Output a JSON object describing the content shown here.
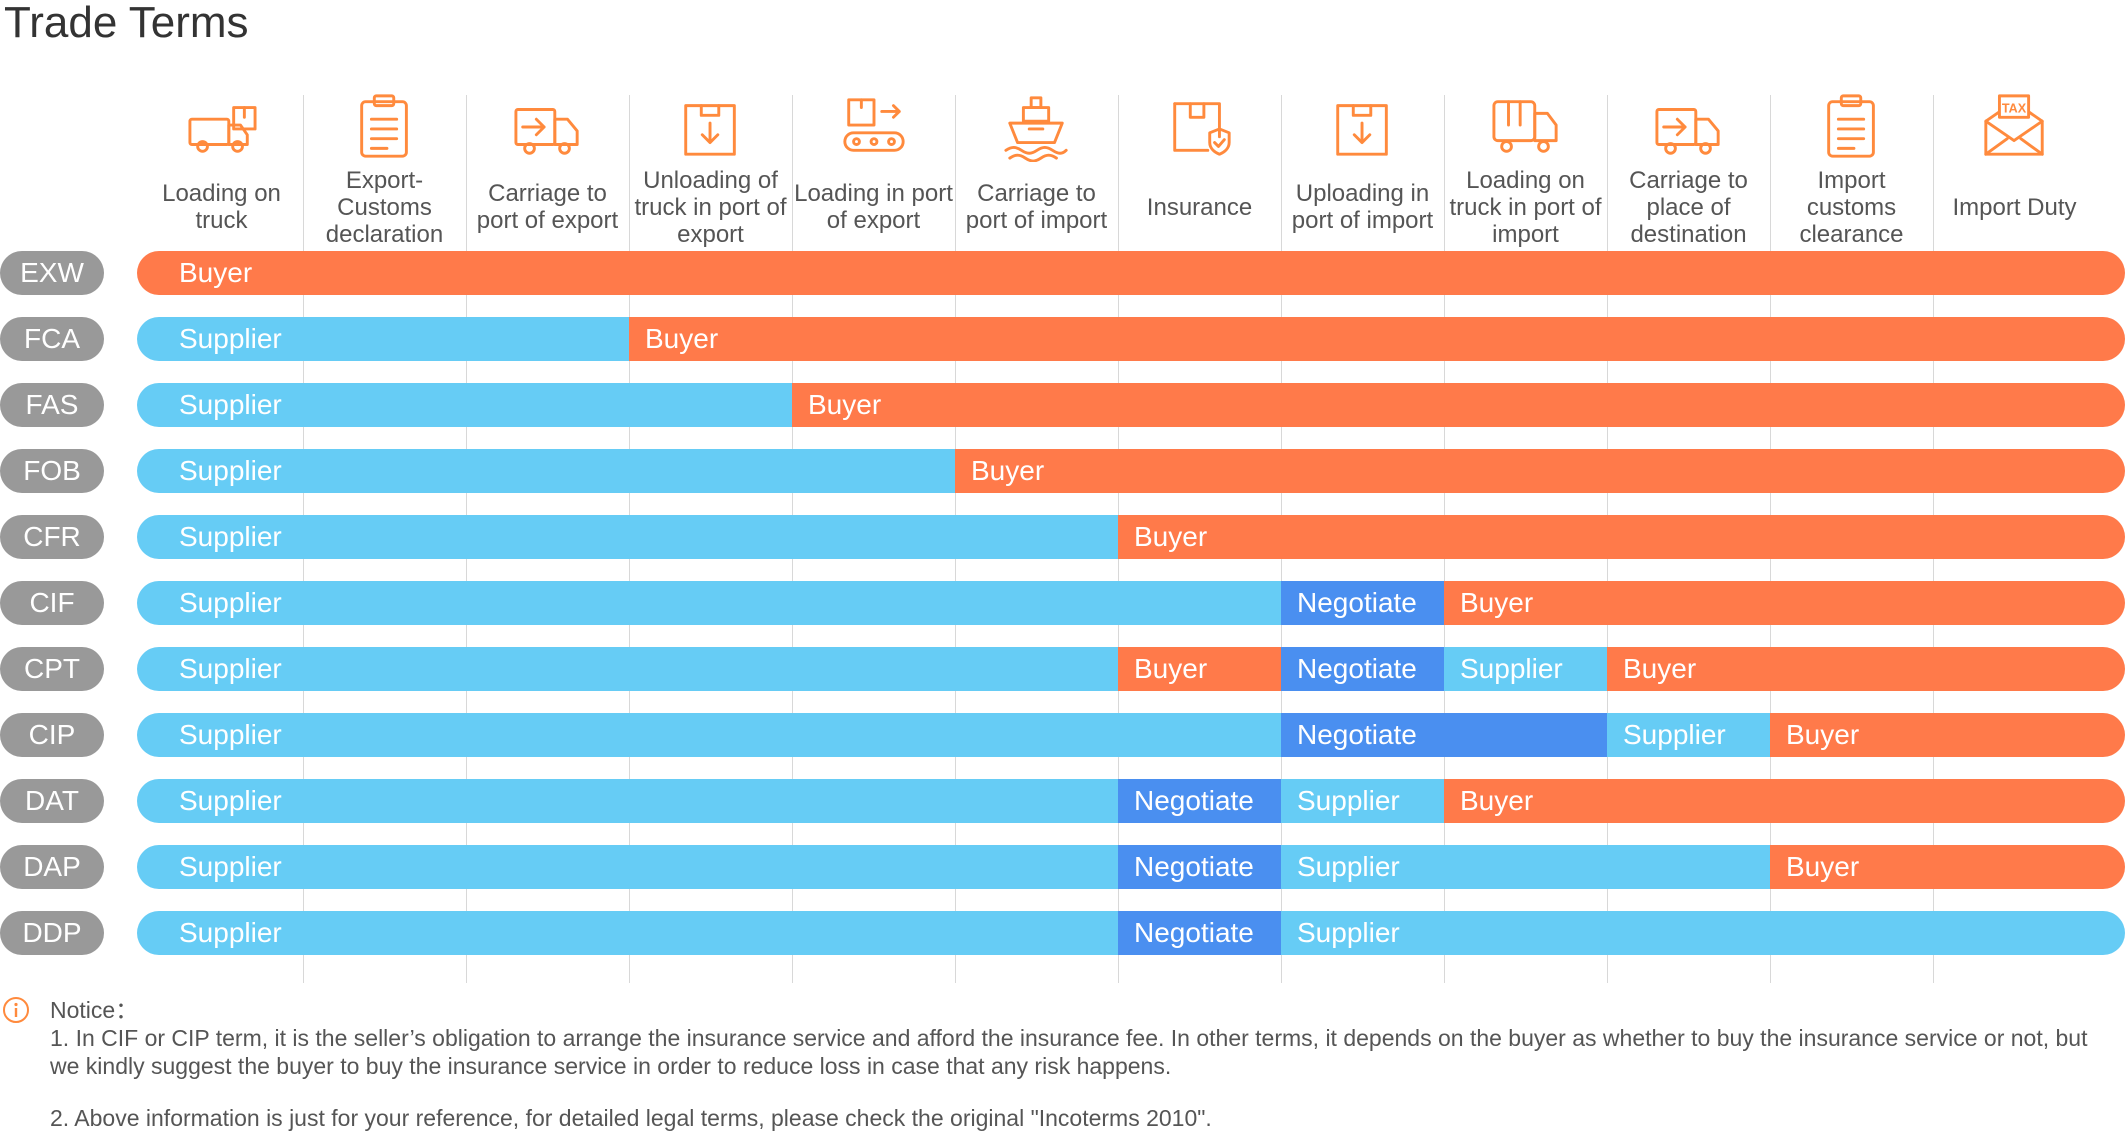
{
  "title": "Trade Terms",
  "columns": [
    {
      "label": "Loading on truck",
      "icon": "loading-truck-icon"
    },
    {
      "label": "Export-Customs declaration",
      "icon": "clipboard-icon"
    },
    {
      "label": "Carriage to port of export",
      "icon": "delivery-truck-icon"
    },
    {
      "label": "Unloading of truck in port of export",
      "icon": "unloading-box-icon"
    },
    {
      "label": "Loading in port of export",
      "icon": "conveyor-icon"
    },
    {
      "label": "Carriage to port of import",
      "icon": "ship-icon"
    },
    {
      "label": "Insurance",
      "icon": "insured-box-icon"
    },
    {
      "label": "Uploading in port of import",
      "icon": "unloading-box-icon"
    },
    {
      "label": "Loading on truck in port of import",
      "icon": "truck-icon"
    },
    {
      "label": "Carriage to place of destination",
      "icon": "delivery-truck-icon"
    },
    {
      "label": "Import customs clearance",
      "icon": "clipboard-icon"
    },
    {
      "label": "Import Duty",
      "icon": "tax-envelope-icon"
    }
  ],
  "icon_tax_text": "TAX",
  "colors": {
    "buyer": "#ff7a4a",
    "supplier": "#66ccf5",
    "negotiate": "#4a8ff0",
    "icon": "#ff8a3d",
    "label_pill": "#999999"
  },
  "rows": [
    {
      "term": "EXW",
      "segments": [
        {
          "party": "Buyer",
          "kind": "buyer",
          "from": 0,
          "to": 12
        }
      ]
    },
    {
      "term": "FCA",
      "segments": [
        {
          "party": "Supplier",
          "kind": "supplier",
          "from": 0,
          "to": 3
        },
        {
          "party": "Buyer",
          "kind": "buyer",
          "from": 3,
          "to": 12
        }
      ]
    },
    {
      "term": "FAS",
      "segments": [
        {
          "party": "Supplier",
          "kind": "supplier",
          "from": 0,
          "to": 4
        },
        {
          "party": "Buyer",
          "kind": "buyer",
          "from": 4,
          "to": 12
        }
      ]
    },
    {
      "term": "FOB",
      "segments": [
        {
          "party": "Supplier",
          "kind": "supplier",
          "from": 0,
          "to": 5
        },
        {
          "party": "Buyer",
          "kind": "buyer",
          "from": 5,
          "to": 12
        }
      ]
    },
    {
      "term": "CFR",
      "segments": [
        {
          "party": "Supplier",
          "kind": "supplier",
          "from": 0,
          "to": 6
        },
        {
          "party": "Buyer",
          "kind": "buyer",
          "from": 6,
          "to": 12
        }
      ]
    },
    {
      "term": "CIF",
      "segments": [
        {
          "party": "Supplier",
          "kind": "supplier",
          "from": 0,
          "to": 7
        },
        {
          "party": "Negotiate",
          "kind": "negotiate",
          "from": 7,
          "to": 8
        },
        {
          "party": "Buyer",
          "kind": "buyer",
          "from": 8,
          "to": 12
        }
      ]
    },
    {
      "term": "CPT",
      "segments": [
        {
          "party": "Supplier",
          "kind": "supplier",
          "from": 0,
          "to": 6
        },
        {
          "party": "Buyer",
          "kind": "buyer",
          "from": 6,
          "to": 7
        },
        {
          "party": "Negotiate",
          "kind": "negotiate",
          "from": 7,
          "to": 8
        },
        {
          "party": "Supplier",
          "kind": "supplier",
          "from": 8,
          "to": 9
        },
        {
          "party": "Buyer",
          "kind": "buyer",
          "from": 9,
          "to": 12
        }
      ]
    },
    {
      "term": "CIP",
      "segments": [
        {
          "party": "Supplier",
          "kind": "supplier",
          "from": 0,
          "to": 7
        },
        {
          "party": "Negotiate",
          "kind": "negotiate",
          "from": 7,
          "to": 9
        },
        {
          "party": "Supplier",
          "kind": "supplier",
          "from": 9,
          "to": 10
        },
        {
          "party": "Buyer",
          "kind": "buyer",
          "from": 10,
          "to": 12
        }
      ]
    },
    {
      "term": "DAT",
      "segments": [
        {
          "party": "Supplier",
          "kind": "supplier",
          "from": 0,
          "to": 6
        },
        {
          "party": "Negotiate",
          "kind": "negotiate",
          "from": 6,
          "to": 7
        },
        {
          "party": "Supplier",
          "kind": "supplier",
          "from": 7,
          "to": 8
        },
        {
          "party": "Buyer",
          "kind": "buyer",
          "from": 8,
          "to": 12
        }
      ]
    },
    {
      "term": "DAP",
      "segments": [
        {
          "party": "Supplier",
          "kind": "supplier",
          "from": 0,
          "to": 6
        },
        {
          "party": "Negotiate",
          "kind": "negotiate",
          "from": 6,
          "to": 7
        },
        {
          "party": "Supplier",
          "kind": "supplier",
          "from": 7,
          "to": 10
        },
        {
          "party": "Buyer",
          "kind": "buyer",
          "from": 10,
          "to": 12
        }
      ]
    },
    {
      "term": "DDP",
      "segments": [
        {
          "party": "Supplier",
          "kind": "supplier",
          "from": 0,
          "to": 6
        },
        {
          "party": "Negotiate",
          "kind": "negotiate",
          "from": 6,
          "to": 7
        },
        {
          "party": "Supplier",
          "kind": "supplier",
          "from": 7,
          "to": 12
        }
      ]
    }
  ],
  "notice": {
    "icon": "info-icon",
    "title": "Notice：",
    "line1": "1. In CIF or CIP term, it is the seller’s obligation to arrange the insurance service and afford the insurance fee. In other terms, it depends on the buyer as whether to buy the insurance service or not, but we kindly suggest the buyer to buy the insurance service in order to reduce loss in case that any risk happens.",
    "line2": "2. Above information is just for your reference, for detailed legal terms, please check the original \"Incoterms 2010\"."
  }
}
